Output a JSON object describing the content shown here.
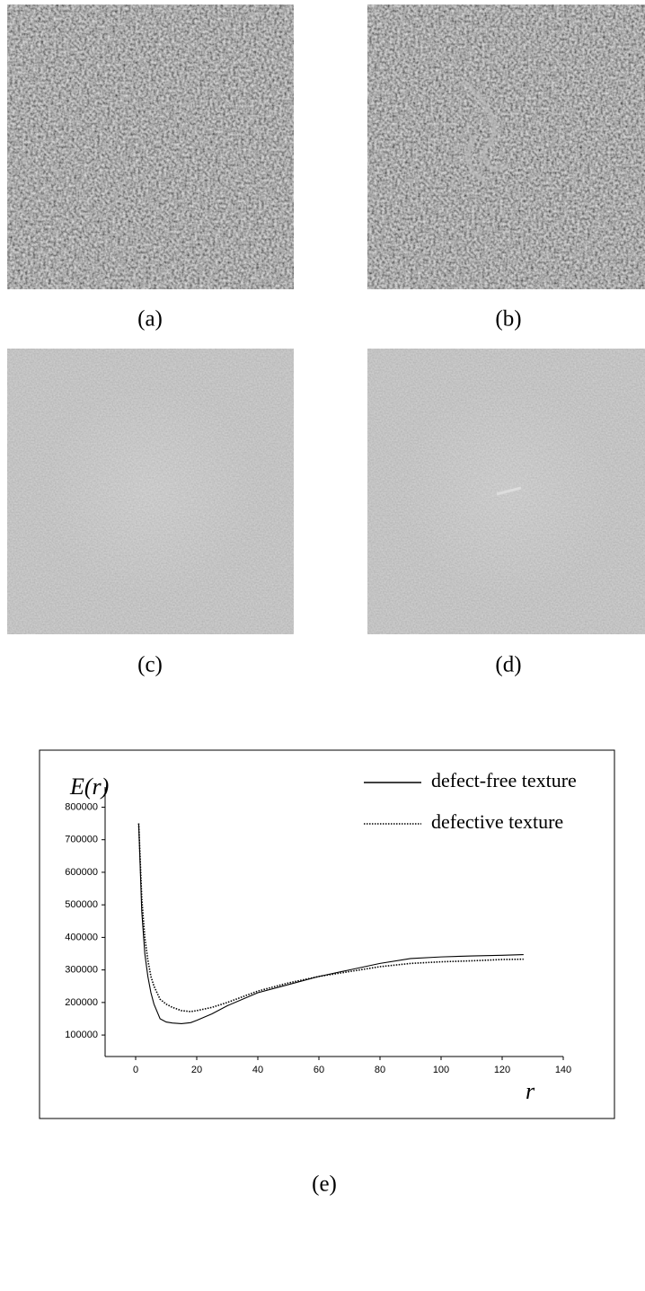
{
  "captions": [
    "(a)",
    "(b)",
    "(c)",
    "(d)",
    "(e)"
  ],
  "chart_data": {
    "type": "line",
    "y_label": "E(r)",
    "x_label": "r",
    "x": [
      1,
      2,
      3,
      4,
      5,
      6,
      8,
      10,
      12,
      15,
      18,
      20,
      25,
      30,
      40,
      50,
      60,
      70,
      80,
      90,
      100,
      110,
      120,
      127
    ],
    "series": [
      {
        "name": "defect-free texture",
        "color": "#000000",
        "dash": "solid",
        "values": [
          750000,
          480000,
          350000,
          280000,
          230000,
          195000,
          150000,
          140000,
          137000,
          135000,
          138000,
          145000,
          165000,
          190000,
          230000,
          255000,
          280000,
          300000,
          320000,
          335000,
          340000,
          343000,
          345000,
          347000
        ]
      },
      {
        "name": "defective texture",
        "color": "#000000",
        "dash": "dotted",
        "values": [
          750000,
          520000,
          400000,
          330000,
          280000,
          250000,
          210000,
          195000,
          185000,
          175000,
          172000,
          175000,
          185000,
          200000,
          235000,
          260000,
          280000,
          295000,
          310000,
          320000,
          325000,
          328000,
          332000,
          333000
        ]
      }
    ],
    "xlim": [
      -10,
      140
    ],
    "xticks": [
      0,
      20,
      40,
      60,
      80,
      100,
      120,
      140
    ],
    "ylim": [
      34000,
      862000
    ],
    "yticks": [
      100000,
      200000,
      300000,
      400000,
      500000,
      600000,
      700000,
      800000
    ],
    "legend": "upper right"
  }
}
